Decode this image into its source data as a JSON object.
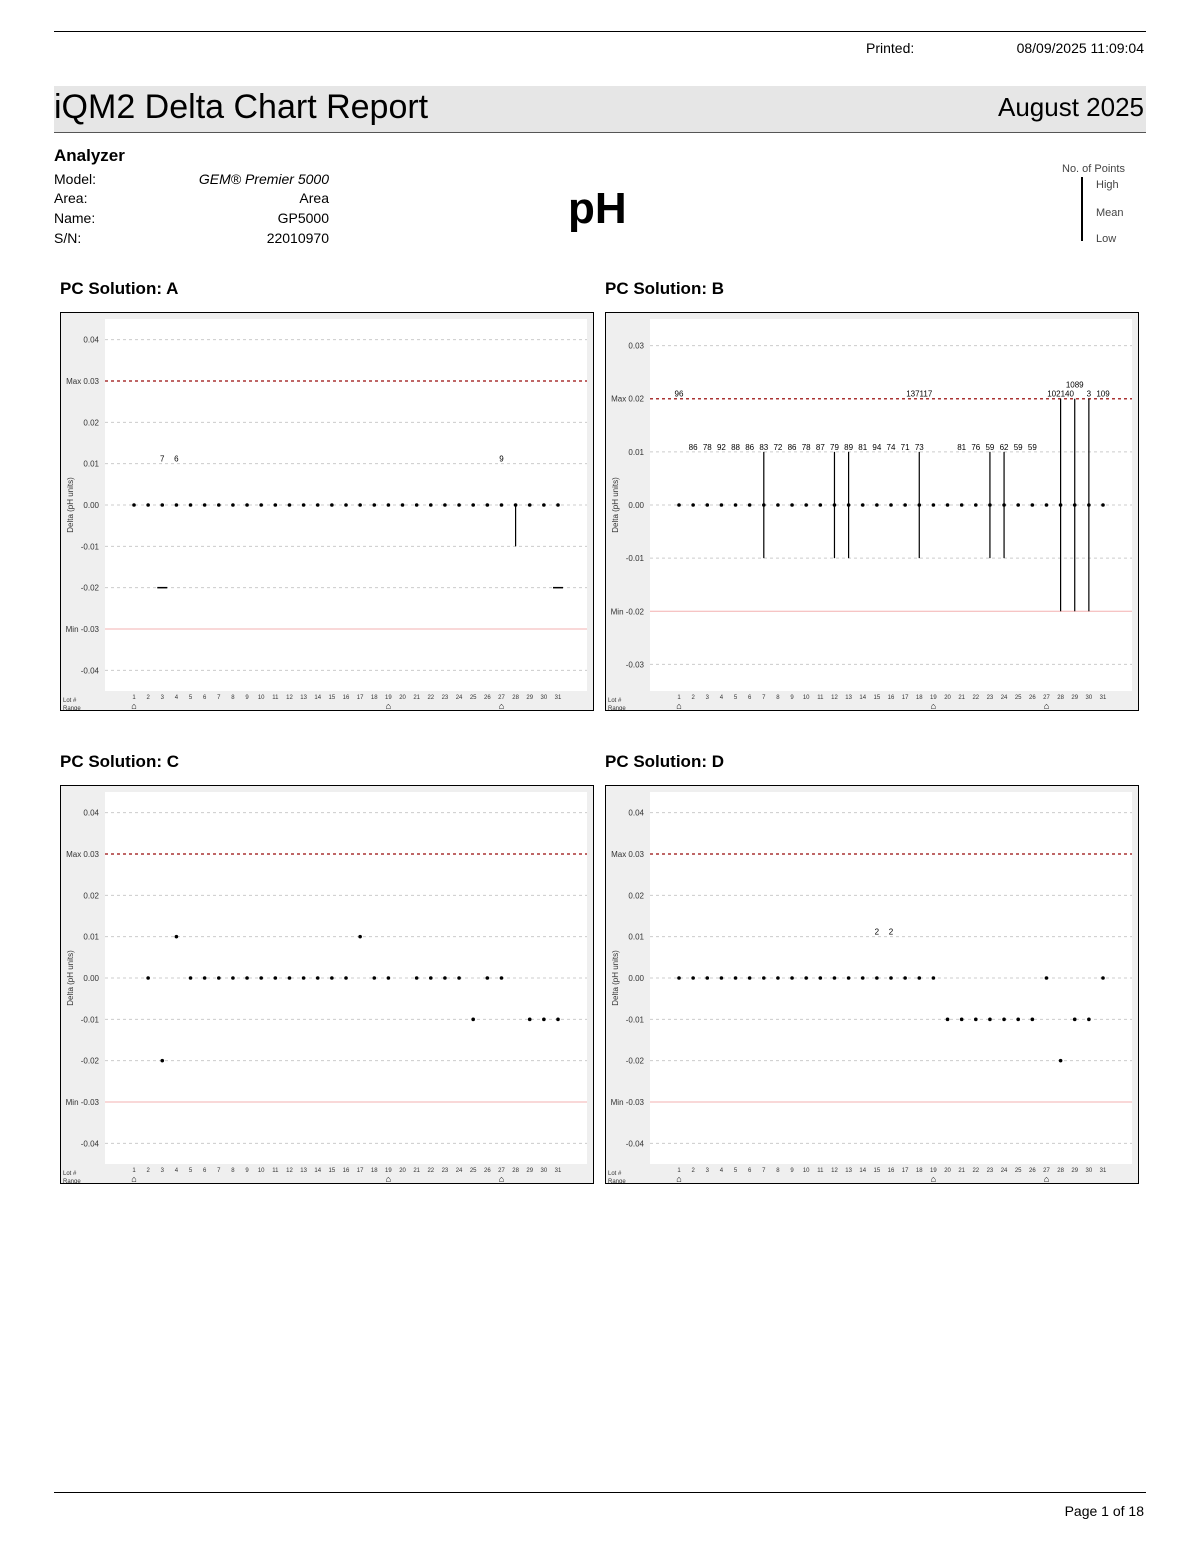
{
  "header": {
    "printed_label": "Printed:",
    "printed_value": "08/09/2025  11:09:04",
    "title": "iQM2 Delta Chart Report",
    "month": "August 2025"
  },
  "analyzer": {
    "heading": "Analyzer",
    "rows": [
      {
        "label": "Model:",
        "value": "GEM® Premier 5000"
      },
      {
        "label": "Area:",
        "value": "Area"
      },
      {
        "label": "Name:",
        "value": "GP5000"
      },
      {
        "label": "S/N:",
        "value": "22010970"
      }
    ]
  },
  "analyte": "pH",
  "legend": {
    "count": "No. of Points",
    "high": "High",
    "mean": "Mean",
    "low": "Low"
  },
  "footer": {
    "page": "Page 1 of 18"
  },
  "chart_data": [
    {
      "type": "scatter",
      "title": "PC Solution: A",
      "ylabel": "Delta (pH units)",
      "xlabel_rows": [
        "Lot #",
        "Range"
      ],
      "x": [
        1,
        31
      ],
      "ylim": [
        -0.045,
        0.045
      ],
      "yticks": [
        0.04,
        0.03,
        0.02,
        0.01,
        0.0,
        -0.01,
        -0.02,
        -0.03,
        -0.04
      ],
      "max": 0.03,
      "min": -0.03,
      "max_label": "Max",
      "min_label": "Min",
      "points": {
        "zero_days": [
          1,
          2,
          3,
          4,
          5,
          6,
          7,
          8,
          9,
          10,
          11,
          12,
          13,
          14,
          15,
          16,
          17,
          18,
          19,
          20,
          21,
          22,
          23,
          24,
          25,
          26,
          27,
          28,
          29,
          30,
          31
        ]
      },
      "ranges": [
        {
          "day": 3,
          "high": -0.02,
          "low": -0.02
        },
        {
          "day": 28,
          "high": 0,
          "low": -0.01
        },
        {
          "day": 31,
          "high": -0.02,
          "low": -0.02
        }
      ],
      "labels": [
        {
          "day": 3,
          "y": 0.01,
          "text": "7"
        },
        {
          "day": 4,
          "y": 0.01,
          "text": "6"
        },
        {
          "day": 27,
          "y": 0.01,
          "text": "9"
        }
      ],
      "lot_markers": [
        1,
        19,
        27
      ]
    },
    {
      "type": "scatter",
      "title": "PC Solution: B",
      "ylabel": "Delta (pH units)",
      "xlabel_rows": [
        "Lot #",
        "Range"
      ],
      "x": [
        1,
        31
      ],
      "ylim": [
        -0.035,
        0.035
      ],
      "yticks": [
        0.03,
        0.02,
        0.01,
        0.0,
        -0.01,
        -0.02,
        -0.03
      ],
      "max": 0.02,
      "min": -0.02,
      "max_label": "Max",
      "min_label": "Min",
      "points": {
        "zero_days": [
          1,
          2,
          3,
          4,
          5,
          6,
          7,
          8,
          9,
          10,
          11,
          12,
          13,
          14,
          15,
          16,
          17,
          18,
          19,
          20,
          21,
          22,
          23,
          24,
          25,
          26,
          27,
          28,
          29,
          30,
          31
        ]
      },
      "ranges": [
        {
          "day": 7,
          "high": 0.01,
          "low": -0.01
        },
        {
          "day": 12,
          "high": 0.01,
          "low": -0.01
        },
        {
          "day": 13,
          "high": 0.01,
          "low": -0.01
        },
        {
          "day": 18,
          "high": 0.01,
          "low": -0.01
        },
        {
          "day": 23,
          "high": 0.01,
          "low": -0.01
        },
        {
          "day": 24,
          "high": 0.01,
          "low": -0.01
        },
        {
          "day": 28,
          "high": 0.02,
          "low": -0.02
        },
        {
          "day": 29,
          "high": 0.02,
          "low": -0.02
        },
        {
          "day": 30,
          "high": 0.02,
          "low": -0.02
        }
      ],
      "labels": [
        {
          "day": 1,
          "y": 0.02,
          "text": "96"
        },
        {
          "day": 18,
          "y": 0.02,
          "text": "137117"
        },
        {
          "day": 28,
          "y": 0.02,
          "text": "102140"
        },
        {
          "day": 29,
          "y": 0.02,
          "text": "1089"
        },
        {
          "day": 30,
          "y": 0.02,
          "text": "3"
        },
        {
          "day": 31,
          "y": 0.02,
          "text": "109"
        },
        {
          "day": 2,
          "y": 0.01,
          "text": "86"
        },
        {
          "day": 3,
          "y": 0.01,
          "text": "78"
        },
        {
          "day": 4,
          "y": 0.01,
          "text": "92"
        },
        {
          "day": 5,
          "y": 0.01,
          "text": "88"
        },
        {
          "day": 6,
          "y": 0.01,
          "text": "86"
        },
        {
          "day": 7,
          "y": 0.01,
          "text": "83"
        },
        {
          "day": 8,
          "y": 0.01,
          "text": "72"
        },
        {
          "day": 9,
          "y": 0.01,
          "text": "86"
        },
        {
          "day": 10,
          "y": 0.01,
          "text": "78"
        },
        {
          "day": 11,
          "y": 0.01,
          "text": "87"
        },
        {
          "day": 12,
          "y": 0.01,
          "text": "79"
        },
        {
          "day": 13,
          "y": 0.01,
          "text": "89"
        },
        {
          "day": 14,
          "y": 0.01,
          "text": "81"
        },
        {
          "day": 15,
          "y": 0.01,
          "text": "94"
        },
        {
          "day": 16,
          "y": 0.01,
          "text": "74"
        },
        {
          "day": 17,
          "y": 0.01,
          "text": "71"
        },
        {
          "day": 18,
          "y": 0.01,
          "text": "73"
        },
        {
          "day": 21,
          "y": 0.01,
          "text": "81"
        },
        {
          "day": 22,
          "y": 0.01,
          "text": "76"
        },
        {
          "day": 23,
          "y": 0.01,
          "text": "59"
        },
        {
          "day": 24,
          "y": 0.01,
          "text": "62"
        },
        {
          "day": 25,
          "y": 0.01,
          "text": "59"
        },
        {
          "day": 26,
          "y": 0.01,
          "text": "59"
        }
      ],
      "lot_markers": [
        1,
        19,
        27
      ]
    },
    {
      "type": "scatter",
      "title": "PC Solution: C",
      "ylabel": "Delta (pH units)",
      "xlabel_rows": [
        "Lot #",
        "Range"
      ],
      "x": [
        1,
        31
      ],
      "ylim": [
        -0.045,
        0.045
      ],
      "yticks": [
        0.04,
        0.03,
        0.02,
        0.01,
        0.0,
        -0.01,
        -0.02,
        -0.03,
        -0.04
      ],
      "max": 0.03,
      "min": -0.03,
      "max_label": "Max",
      "min_label": "Min",
      "points": {
        "values": [
          [
            2,
            0
          ],
          [
            3,
            -0.02
          ],
          [
            4,
            0.01
          ],
          [
            5,
            0
          ],
          [
            6,
            0
          ],
          [
            7,
            0
          ],
          [
            8,
            0
          ],
          [
            9,
            0
          ],
          [
            10,
            0
          ],
          [
            11,
            0
          ],
          [
            12,
            0
          ],
          [
            13,
            0
          ],
          [
            14,
            0
          ],
          [
            15,
            0
          ],
          [
            16,
            0
          ],
          [
            17,
            0.01
          ],
          [
            18,
            0
          ],
          [
            19,
            0
          ],
          [
            21,
            0
          ],
          [
            22,
            0
          ],
          [
            23,
            0
          ],
          [
            24,
            0
          ],
          [
            25,
            -0.01
          ],
          [
            26,
            0
          ],
          [
            27,
            0
          ],
          [
            29,
            -0.01
          ],
          [
            30,
            -0.01
          ],
          [
            31,
            -0.01
          ]
        ]
      },
      "ranges": [],
      "labels": [],
      "lot_markers": [
        1,
        19,
        27
      ]
    },
    {
      "type": "scatter",
      "title": "PC Solution: D",
      "ylabel": "Delta (pH units)",
      "xlabel_rows": [
        "Lot #",
        "Range"
      ],
      "x": [
        1,
        31
      ],
      "ylim": [
        -0.045,
        0.045
      ],
      "yticks": [
        0.04,
        0.03,
        0.02,
        0.01,
        0.0,
        -0.01,
        -0.02,
        -0.03,
        -0.04
      ],
      "max": 0.03,
      "min": -0.03,
      "max_label": "Max",
      "min_label": "Min",
      "points": {
        "values": [
          [
            1,
            0
          ],
          [
            2,
            0
          ],
          [
            3,
            0
          ],
          [
            4,
            0
          ],
          [
            5,
            0
          ],
          [
            6,
            0
          ],
          [
            7,
            0
          ],
          [
            8,
            0
          ],
          [
            9,
            0
          ],
          [
            10,
            0
          ],
          [
            11,
            0
          ],
          [
            12,
            0
          ],
          [
            13,
            0
          ],
          [
            14,
            0
          ],
          [
            15,
            0
          ],
          [
            16,
            0
          ],
          [
            17,
            0
          ],
          [
            18,
            0
          ],
          [
            19,
            0
          ],
          [
            20,
            -0.01
          ],
          [
            21,
            -0.01
          ],
          [
            22,
            -0.01
          ],
          [
            23,
            -0.01
          ],
          [
            24,
            -0.01
          ],
          [
            25,
            -0.01
          ],
          [
            26,
            -0.01
          ],
          [
            27,
            0
          ],
          [
            28,
            -0.02
          ],
          [
            29,
            -0.01
          ],
          [
            30,
            -0.01
          ],
          [
            31,
            0
          ]
        ]
      },
      "ranges": [],
      "labels": [
        {
          "day": 15,
          "y": 0.01,
          "text": "2"
        },
        {
          "day": 16,
          "y": 0.01,
          "text": "2"
        }
      ],
      "lot_markers": [
        1,
        19,
        27
      ]
    }
  ]
}
